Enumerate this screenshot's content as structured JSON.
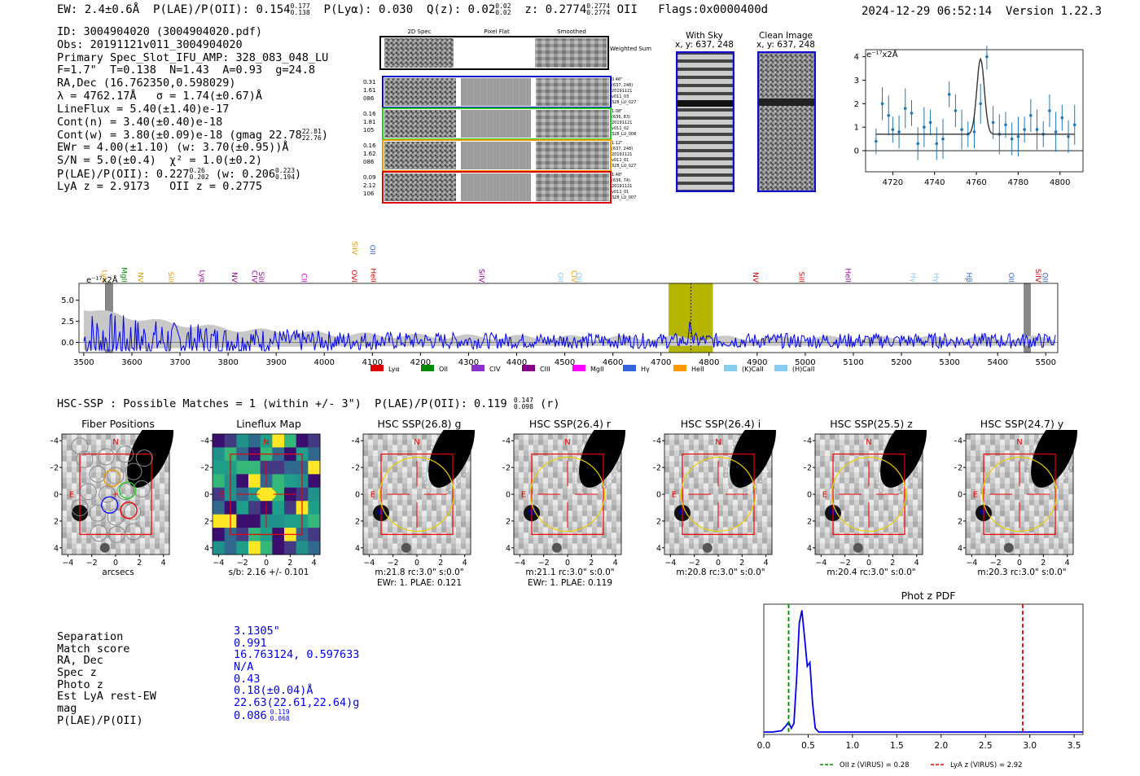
{
  "header": {
    "ew": "EW: 2.4±0.6Å",
    "plae": "P(LAE)/P(OII): 0.154",
    "plae_hi": "0.177",
    "plae_lo": "0.138",
    "plya": "P(Lyα): 0.030",
    "qz": "Q(z): 0.02",
    "qz_hi": "0.02",
    "qz_lo": "0.02",
    "z": "z: 0.2774",
    "z_hi": "0.2774",
    "z_lo": "0.2774",
    "z_line": "OII",
    "flags": "Flags:0x0000400d",
    "timestamp": "2024-12-29 06:52:14",
    "version": "Version 1.22.3"
  },
  "info": {
    "id": "ID: 3004904020 (3004904020.pdf)",
    "obs": "Obs: 20191121v011_3004904020",
    "primary": "Primary Spec_Slot_IFU_AMP: 328_083_048_LU",
    "fit": "F=1.7\"  T=0.138  N=1.43  A=0.93  g=24.8",
    "radec": "RA,Dec (16.762350,0.598029)",
    "lambda": "λ = 4762.17Å   σ = 1.74(±0.67)Å",
    "lineflux": "LineFlux = 5.40(±1.40)e-17",
    "contn": "Cont(n) = 3.40(±0.40)e-18",
    "contw": "Cont(w) = 3.80(±0.09)e-18 (gmag 22.78",
    "contw_hi": "22.81",
    "contw_lo": "22.76",
    "ewr": "EWr = 4.00(±1.10) (w: 3.70(±0.95))Å",
    "sn": "S/N = 5.0(±0.4)  χ² = 1.0(±0.2)",
    "plae": "P(LAE)/P(OII): 0.227",
    "plae_hi": "0.26",
    "plae_lo": "0.202",
    "plae_w": "(w: 0.206",
    "plae_w_hi": "0.223",
    "plae_w_lo": "0.194",
    "lya": "LyA z = 2.9173   OII z = 0.2775"
  },
  "cutouts": {
    "col_titles": [
      "2D Spec",
      "Pixel Flat",
      "Smoothed"
    ],
    "weighted_sum": "Weighted Sum",
    "rows": [
      {
        "left": [
          "0.31",
          "1.61",
          "086"
        ],
        "right": [
          "0.46\"",
          "(637, 248)",
          "20191121",
          "v011_03",
          "328_LU_027"
        ],
        "color": "#0000cc"
      },
      {
        "left": [
          "0.16",
          "1.81",
          "105"
        ],
        "right": [
          "1.08\"",
          "(636, 83)",
          "20191121",
          "v011_02",
          "328_LU_008"
        ],
        "color": "#22cc22"
      },
      {
        "left": [
          "0.16",
          "1.62",
          "086"
        ],
        "right": [
          "1.12\"",
          "(637, 248)",
          "20191121",
          "v011_01",
          "328_LU_027"
        ],
        "color": "#ee9900"
      },
      {
        "left": [
          "0.09",
          "2.12",
          "106"
        ],
        "right": [
          "1.48\"",
          "(636, 74)",
          "20191121",
          "v011_01",
          "328_LU_007"
        ],
        "color": "#dd0000"
      }
    ],
    "with_sky": "With Sky",
    "with_sky_xy": "x, y: 637, 248",
    "clean": "Clean Image",
    "clean_xy": "x, y: 637, 248"
  },
  "zoom_fit": {
    "ylabel": "e⁻¹⁷x2Å",
    "x": [
      4712,
      4715,
      4718,
      4720,
      4723,
      4726,
      4729,
      4732,
      4735,
      4738,
      4741,
      4744,
      4747,
      4750,
      4753,
      4756,
      4759,
      4762,
      4765,
      4768,
      4771,
      4774,
      4777,
      4780,
      4783,
      4786,
      4789,
      4792,
      4795,
      4798,
      4801,
      4804,
      4807
    ],
    "y": [
      0.4,
      2.0,
      1.5,
      0.9,
      0.8,
      1.8,
      1.6,
      0.3,
      1.0,
      1.2,
      0.3,
      0.5,
      2.4,
      1.7,
      0.9,
      0.7,
      0.8,
      2.0,
      4.0,
      1.2,
      0.7,
      1.1,
      0.5,
      0.6,
      0.9,
      1.5,
      0.9,
      0.7,
      1.7,
      0.8,
      1.4,
      0.6,
      1.1
    ],
    "fit_baseline": 0.7,
    "fit_peak": 3.2,
    "fit_center": 4762,
    "fit_sigma": 1.8,
    "xticks": [
      "4720",
      "4740",
      "4760",
      "4780",
      "4800"
    ],
    "yticks": [
      "0",
      "1",
      "2",
      "3",
      "4"
    ],
    "xlim": [
      4707,
      4811
    ],
    "ylim": [
      -0.9,
      4.3
    ]
  },
  "spectrum": {
    "ylabel": "e⁻¹⁷x2Å",
    "xticks": [
      "3500",
      "3600",
      "3700",
      "3800",
      "3900",
      "4000",
      "4100",
      "4200",
      "4300",
      "4400",
      "4500",
      "4600",
      "4700",
      "4800",
      "4900",
      "5000",
      "5100",
      "5200",
      "5300",
      "5400",
      "5500"
    ],
    "yticks": [
      "0.0",
      "2.5",
      "5.0"
    ],
    "xlim": [
      3490,
      5525
    ],
    "ylim": [
      -1.2,
      7.0
    ],
    "highlight": [
      4716,
      4808
    ],
    "emission_line": 4762,
    "masks": [
      [
        3545,
        3560
      ],
      [
        5455,
        5468
      ]
    ],
    "line_markers": [
      {
        "label": "Lyα",
        "x": 3533,
        "color": "#ee9900"
      },
      {
        "label": "MgII",
        "x": 3574,
        "color": "#008800"
      },
      {
        "label": "NV",
        "x": 3608,
        "color": "#ee9900"
      },
      {
        "label": "SiII",
        "x": 3671,
        "color": "#ee9900"
      },
      {
        "label": "Lyα",
        "x": 3736,
        "color": "#990099"
      },
      {
        "label": "NV",
        "x": 3803,
        "color": "#990099"
      },
      {
        "label": "CIV",
        "x": 3845,
        "color": "#990099"
      },
      {
        "label": "SiII",
        "x": 3859,
        "color": "#990099"
      },
      {
        "label": "CII",
        "x": 3948,
        "color": "#cc00cc"
      },
      {
        "label": "OVI",
        "x": 4052,
        "color": "#dd0000"
      },
      {
        "label": "SiIV",
        "x": 4053,
        "color": "#ee9900"
      },
      {
        "label": "OII",
        "x": 4090,
        "color": "#3366cc"
      },
      {
        "label": "HeII",
        "x": 4092,
        "color": "#dd0000"
      },
      {
        "label": "SiIV",
        "x": 4317,
        "color": "#990099"
      },
      {
        "label": "OII",
        "x": 4481,
        "color": "#88ccee"
      },
      {
        "label": "CIV",
        "x": 4509,
        "color": "#ee9900"
      },
      {
        "label": "OII",
        "x": 4519,
        "color": "#88ccee"
      },
      {
        "label": "NV",
        "x": 4887,
        "color": "#dd0000"
      },
      {
        "label": "SiII",
        "x": 4982,
        "color": "#dd0000"
      },
      {
        "label": "HeII",
        "x": 5079,
        "color": "#990099"
      },
      {
        "label": "Hγ",
        "x": 5214,
        "color": "#88ccee"
      },
      {
        "label": "Hγ",
        "x": 5263,
        "color": "#88ccee"
      },
      {
        "label": "Hβ",
        "x": 5330,
        "color": "#3366cc"
      },
      {
        "label": "OII",
        "x": 5418,
        "color": "#3366cc"
      },
      {
        "label": "SiIV",
        "x": 5474,
        "color": "#dd0000"
      },
      {
        "label": "OII",
        "x": 5489,
        "color": "#3366cc"
      }
    ],
    "legend": [
      {
        "label": "Lyα",
        "color": "#dd0000"
      },
      {
        "label": "OII",
        "color": "#008800"
      },
      {
        "label": "CIV",
        "color": "#8833cc"
      },
      {
        "label": "CIII",
        "color": "#880088"
      },
      {
        "label": "MgII",
        "color": "#ff00ff"
      },
      {
        "label": "Hγ",
        "color": "#3366dd"
      },
      {
        "label": "HeII",
        "color": "#ff9900"
      },
      {
        "label": "(K)CaII",
        "color": "#88ccee"
      },
      {
        "label": "(H)CaII",
        "color": "#88ccee"
      }
    ]
  },
  "hsc": {
    "title": "HSC-SSP : Possible Matches = 1 (within +/- 3\")  P(LAE)/P(OII): 0.119",
    "plae_hi": "0.147",
    "plae_lo": "0.098",
    "band": "(r)",
    "ticks": [
      "−4",
      "−2",
      "0",
      "2",
      "4"
    ],
    "panels": [
      {
        "title": "Fiber Positions",
        "cap1": "arcsecs",
        "cap2": ""
      },
      {
        "title": "Lineflux Map",
        "cap1": "s/b: 2.16 +/- 0.101",
        "cap2": ""
      },
      {
        "title": "HSC SSP(26.8) g",
        "cap1": "m:21.8 rc:3.0\"  s:0.0\"",
        "cap2": "EWr: 1. PLAE: 0.121"
      },
      {
        "title": "HSC SSP(26.4) r",
        "cap1": "m:21.1 rc:3.0\"  s:0.0\"",
        "cap2": "EWr: 1. PLAE: 0.119"
      },
      {
        "title": "HSC SSP(26.4) i",
        "cap1": "m:20.8 rc:3.0\"  s:0.0\"",
        "cap2": ""
      },
      {
        "title": "HSC SSP(25.5) z",
        "cap1": "m:20.4 rc:3.0\"  s:0.0\"",
        "cap2": ""
      },
      {
        "title": "HSC SSP(24.7) y",
        "cap1": "m:20.3 rc:3.0\"  s:0.0\"",
        "cap2": ""
      }
    ],
    "north": "N",
    "east": "E"
  },
  "match": {
    "labels": [
      "Separation",
      "Match score",
      "RA, Dec",
      "Spec z",
      "Photo z",
      "Est LyA rest-EW",
      "mag",
      "P(LAE)/P(OII)"
    ],
    "values": [
      "3.1305\"",
      "0.991",
      "16.763124, 0.597633",
      "N/A",
      "0.43",
      "0.18(±0.04)Å",
      "22.63(22.61,22.64)g",
      "0.086"
    ],
    "plae_hi": "0.119",
    "plae_lo": "0.068"
  },
  "photz": {
    "title": "Phot z PDF",
    "xticks": [
      "0.0",
      "0.5",
      "1.0",
      "1.5",
      "2.0",
      "2.5",
      "3.0",
      "3.5"
    ],
    "xlim": [
      0.0,
      3.6
    ],
    "ylim": [
      0,
      1.05
    ],
    "curve_x": [
      0.0,
      0.1,
      0.2,
      0.25,
      0.28,
      0.31,
      0.34,
      0.37,
      0.4,
      0.43,
      0.46,
      0.49,
      0.52,
      0.55,
      0.58,
      0.62,
      0.7,
      1.0,
      2.0,
      3.0,
      3.6
    ],
    "curve_y": [
      0.02,
      0.02,
      0.03,
      0.07,
      0.1,
      0.05,
      0.09,
      0.45,
      0.9,
      1.0,
      0.78,
      0.55,
      0.58,
      0.25,
      0.05,
      0.02,
      0.02,
      0.02,
      0.02,
      0.02,
      0.02
    ],
    "oii_z": 0.28,
    "lya_z": 2.92,
    "legend_oii": "OII z (VIRUS) = 0.28",
    "legend_lya": "LyA z (VIRUS) = 2.92"
  },
  "colors": {
    "blue": "#0000ee",
    "highlight": "#b5b500",
    "red": "#dd0000",
    "green": "#008800"
  }
}
